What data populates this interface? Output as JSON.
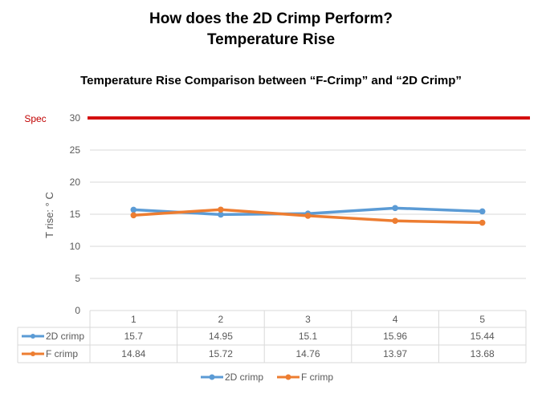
{
  "slide": {
    "title_line1": "How does the 2D Crimp Perform?",
    "title_line2": "Temperature Rise",
    "subtitle": "Temperature Rise Comparison between “F-Crimp” and “2D Crimp”"
  },
  "chart_data": {
    "type": "line",
    "title": "Temperature Rise Comparison between “F-Crimp” and “2D Crimp”",
    "xlabel": "",
    "ylabel": "T rise:  ° C",
    "categories": [
      "1",
      "2",
      "3",
      "4",
      "5"
    ],
    "yticks": [
      "0",
      "5",
      "10",
      "15",
      "20",
      "25",
      "30"
    ],
    "ylim": [
      0,
      30
    ],
    "grid": true,
    "legend": "bottom",
    "data_table": true,
    "spec_line": {
      "label": "Spec",
      "value": 30,
      "color": "#d40f0f"
    },
    "series": [
      {
        "name": "2D crimp",
        "color": "#5b9bd5",
        "values": [
          15.7,
          14.95,
          15.1,
          15.96,
          15.44
        ]
      },
      {
        "name": "F crimp",
        "color": "#ed7d31",
        "values": [
          14.84,
          15.72,
          14.76,
          13.97,
          13.68
        ]
      }
    ]
  }
}
